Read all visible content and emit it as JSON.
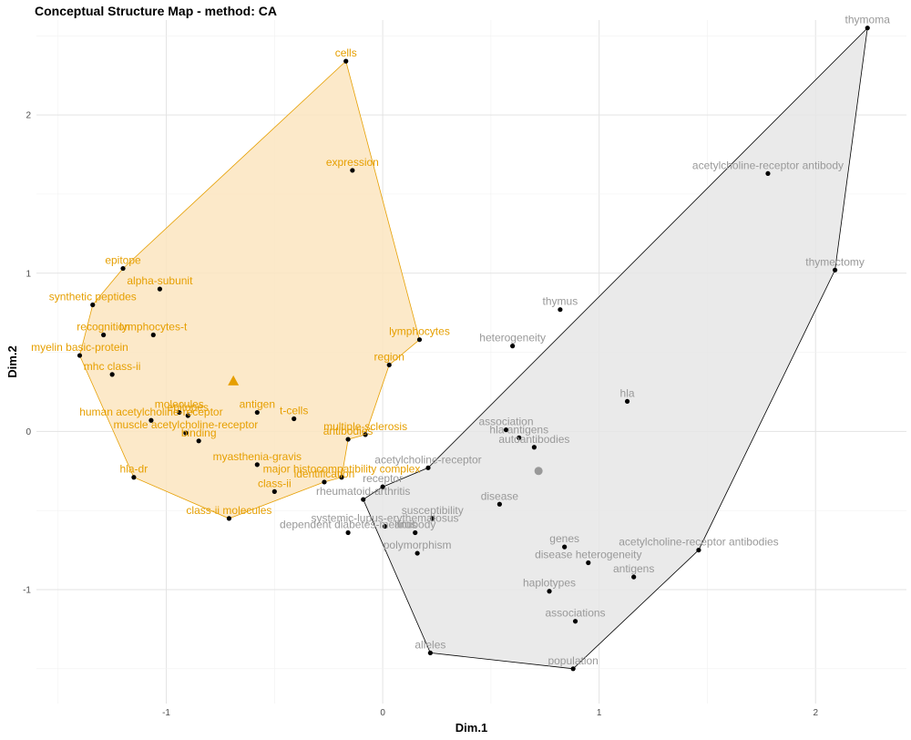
{
  "chart_data": {
    "type": "scatter",
    "title": "Conceptual Structure Map - method: CA",
    "xlabel": "Dim.1",
    "ylabel": "Dim.2",
    "xlim": [
      -1.6,
      2.42
    ],
    "ylim": [
      -1.72,
      2.6
    ],
    "x_ticks": [
      -1,
      0,
      1,
      2
    ],
    "y_ticks": [
      -1,
      0,
      1,
      2
    ],
    "grid": true,
    "clusters": [
      {
        "color": "#e69f00",
        "fill": "#fbe5bf",
        "centroid": [
          -0.69,
          0.32
        ],
        "centroid_marker": "triangle",
        "hull": [
          "cells",
          "lymphocytes",
          "region",
          "multiple-sclerosis",
          "antibodies",
          "major histocompatibility complex",
          "identification",
          "class-ii molecules",
          "hla-dr",
          "myelin basic-protein",
          "synthetic peptides",
          "epitope"
        ],
        "points": [
          {
            "label": "cells",
            "x": -0.17,
            "y": 2.34
          },
          {
            "label": "expression",
            "x": -0.14,
            "y": 1.65
          },
          {
            "label": "epitope",
            "x": -1.2,
            "y": 1.03
          },
          {
            "label": "alpha-subunit",
            "x": -1.03,
            "y": 0.9
          },
          {
            "label": "synthetic peptides",
            "x": -1.34,
            "y": 0.8
          },
          {
            "label": "recognition",
            "x": -1.29,
            "y": 0.61
          },
          {
            "label": "lymphocytes-t",
            "x": -1.06,
            "y": 0.61
          },
          {
            "label": "lymphocytes",
            "x": 0.17,
            "y": 0.58
          },
          {
            "label": "myelin basic-protein",
            "x": -1.4,
            "y": 0.48
          },
          {
            "label": "region",
            "x": 0.03,
            "y": 0.42
          },
          {
            "label": "mhc class-ii",
            "x": -1.25,
            "y": 0.36
          },
          {
            "label": "molecules",
            "x": -0.94,
            "y": 0.12
          },
          {
            "label": "antigen",
            "x": -0.58,
            "y": 0.12
          },
          {
            "label": "epitopes",
            "x": -0.9,
            "y": 0.1
          },
          {
            "label": "t-cells",
            "x": -0.41,
            "y": 0.08
          },
          {
            "label": "human acetylcholine-receptor",
            "x": -1.07,
            "y": 0.07
          },
          {
            "label": "multiple-sclerosis",
            "x": -0.08,
            "y": -0.02
          },
          {
            "label": "muscle acetylcholine-receptor",
            "x": -0.91,
            "y": -0.01
          },
          {
            "label": "antibodies",
            "x": -0.16,
            "y": -0.05
          },
          {
            "label": "binding",
            "x": -0.85,
            "y": -0.06
          },
          {
            "label": "myasthenia-gravis",
            "x": -0.58,
            "y": -0.21
          },
          {
            "label": "major histocompatibility complex",
            "x": -0.19,
            "y": -0.29
          },
          {
            "label": "hla-dr",
            "x": -1.15,
            "y": -0.29
          },
          {
            "label": "identification",
            "x": -0.27,
            "y": -0.32
          },
          {
            "label": "class-ii",
            "x": -0.5,
            "y": -0.38
          },
          {
            "label": "class-ii molecules",
            "x": -0.71,
            "y": -0.55
          }
        ]
      },
      {
        "color": "#000000",
        "fill": "#e6e6e6",
        "label_color": "#999999",
        "centroid": [
          0.72,
          -0.25
        ],
        "centroid_marker": "circle",
        "hull": [
          "thymoma",
          "thymectomy",
          "acetylcholine-receptor antibodies",
          "population",
          "alleles",
          "rheumatoid-arthritis",
          "receptor",
          "acetylcholine-receptor"
        ],
        "points": [
          {
            "label": "thymoma",
            "x": 2.24,
            "y": 2.55
          },
          {
            "label": "acetylcholine-receptor antibody",
            "x": 1.78,
            "y": 1.63
          },
          {
            "label": "thymectomy",
            "x": 2.09,
            "y": 1.02
          },
          {
            "label": "thymus",
            "x": 0.82,
            "y": 0.77
          },
          {
            "label": "heterogeneity",
            "x": 0.6,
            "y": 0.54
          },
          {
            "label": "hla",
            "x": 1.13,
            "y": 0.19
          },
          {
            "label": "association",
            "x": 0.57,
            "y": 0.01
          },
          {
            "label": "hla antigens",
            "x": 0.63,
            "y": -0.04
          },
          {
            "label": "autoantibodies",
            "x": 0.7,
            "y": -0.1
          },
          {
            "label": "acetylcholine-receptor",
            "x": 0.21,
            "y": -0.23
          },
          {
            "label": "receptor",
            "x": 0.0,
            "y": -0.35
          },
          {
            "label": "disease",
            "x": 0.54,
            "y": -0.46
          },
          {
            "label": "rheumatoid-arthritis",
            "x": -0.09,
            "y": -0.43
          },
          {
            "label": "susceptibility",
            "x": 0.23,
            "y": -0.55
          },
          {
            "label": "systemic-lupus-erythematosus",
            "x": 0.01,
            "y": -0.6
          },
          {
            "label": "dependent diabetes-mellitus",
            "x": -0.16,
            "y": -0.64
          },
          {
            "label": "antibody",
            "x": 0.15,
            "y": -0.64
          },
          {
            "label": "genes",
            "x": 0.84,
            "y": -0.73
          },
          {
            "label": "polymorphism",
            "x": 0.16,
            "y": -0.77
          },
          {
            "label": "acetylcholine-receptor antibodies",
            "x": 1.46,
            "y": -0.75
          },
          {
            "label": "disease heterogeneity",
            "x": 0.95,
            "y": -0.83
          },
          {
            "label": "antigens",
            "x": 1.16,
            "y": -0.92
          },
          {
            "label": "haplotypes",
            "x": 0.77,
            "y": -1.01
          },
          {
            "label": "associations",
            "x": 0.89,
            "y": -1.2
          },
          {
            "label": "alleles",
            "x": 0.22,
            "y": -1.4
          },
          {
            "label": "population",
            "x": 0.88,
            "y": -1.5
          }
        ]
      }
    ]
  }
}
